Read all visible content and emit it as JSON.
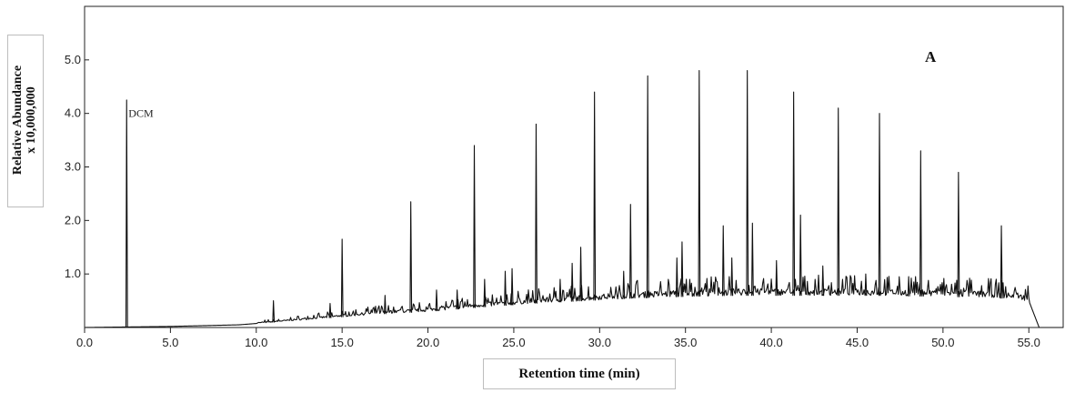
{
  "chart_data": {
    "type": "line",
    "title": "",
    "panel_label": "A",
    "xlabel": "Retention time  (min)",
    "ylabel_line1": "Relative Abundance",
    "ylabel_line2": "x 10,000,000",
    "xlim": [
      0.0,
      57.0
    ],
    "ylim": [
      0.0,
      6.0
    ],
    "x_ticks": [
      0.0,
      5.0,
      10.0,
      15.0,
      20.0,
      25.0,
      30.0,
      35.0,
      40.0,
      45.0,
      50.0,
      55.0
    ],
    "x_tick_labels": [
      "0.0",
      "5.0",
      "10.0",
      "15.0",
      "20.0",
      "25.0",
      "30.0",
      "35.0",
      "40.0",
      "45.0",
      "50.0",
      "55.0"
    ],
    "y_ticks": [
      1.0,
      2.0,
      3.0,
      4.0,
      5.0
    ],
    "y_tick_labels": [
      "1.0",
      "2.0",
      "3.0",
      "4.0",
      "5.0"
    ],
    "grid": false,
    "annotations": [
      {
        "text": "DCM",
        "x": 2.4,
        "y": 4.0
      }
    ],
    "baseline": [
      {
        "x": 0.0,
        "y": 0.0
      },
      {
        "x": 5.0,
        "y": 0.02
      },
      {
        "x": 9.0,
        "y": 0.05
      },
      {
        "x": 11.0,
        "y": 0.1
      },
      {
        "x": 13.0,
        "y": 0.15
      },
      {
        "x": 15.0,
        "y": 0.2
      },
      {
        "x": 17.0,
        "y": 0.25
      },
      {
        "x": 20.0,
        "y": 0.3
      },
      {
        "x": 23.0,
        "y": 0.38
      },
      {
        "x": 26.0,
        "y": 0.45
      },
      {
        "x": 29.0,
        "y": 0.5
      },
      {
        "x": 32.0,
        "y": 0.55
      },
      {
        "x": 35.0,
        "y": 0.58
      },
      {
        "x": 38.0,
        "y": 0.6
      },
      {
        "x": 42.0,
        "y": 0.6
      },
      {
        "x": 46.0,
        "y": 0.6
      },
      {
        "x": 50.0,
        "y": 0.58
      },
      {
        "x": 53.0,
        "y": 0.56
      },
      {
        "x": 55.0,
        "y": 0.5
      },
      {
        "x": 55.6,
        "y": 0.0
      }
    ],
    "peaks": [
      {
        "x": 2.45,
        "y": 4.25
      },
      {
        "x": 11.0,
        "y": 0.5
      },
      {
        "x": 14.3,
        "y": 0.45
      },
      {
        "x": 15.0,
        "y": 1.65
      },
      {
        "x": 17.5,
        "y": 0.6
      },
      {
        "x": 19.0,
        "y": 2.35
      },
      {
        "x": 20.5,
        "y": 0.7
      },
      {
        "x": 21.7,
        "y": 0.7
      },
      {
        "x": 22.7,
        "y": 3.4
      },
      {
        "x": 23.3,
        "y": 0.9
      },
      {
        "x": 24.5,
        "y": 1.05
      },
      {
        "x": 24.9,
        "y": 1.1
      },
      {
        "x": 26.3,
        "y": 3.8
      },
      {
        "x": 27.7,
        "y": 0.9
      },
      {
        "x": 28.4,
        "y": 1.2
      },
      {
        "x": 28.9,
        "y": 1.5
      },
      {
        "x": 29.7,
        "y": 4.4
      },
      {
        "x": 31.4,
        "y": 1.05
      },
      {
        "x": 31.8,
        "y": 2.3
      },
      {
        "x": 32.8,
        "y": 4.7
      },
      {
        "x": 34.5,
        "y": 1.3
      },
      {
        "x": 34.8,
        "y": 1.6
      },
      {
        "x": 35.8,
        "y": 4.8
      },
      {
        "x": 37.2,
        "y": 1.9
      },
      {
        "x": 37.7,
        "y": 1.3
      },
      {
        "x": 38.6,
        "y": 4.8
      },
      {
        "x": 38.9,
        "y": 1.95
      },
      {
        "x": 40.3,
        "y": 1.25
      },
      {
        "x": 41.3,
        "y": 4.4
      },
      {
        "x": 41.7,
        "y": 2.1
      },
      {
        "x": 43.0,
        "y": 1.15
      },
      {
        "x": 43.9,
        "y": 4.1
      },
      {
        "x": 45.5,
        "y": 1.0
      },
      {
        "x": 46.3,
        "y": 4.0
      },
      {
        "x": 48.0,
        "y": 0.95
      },
      {
        "x": 48.7,
        "y": 3.3
      },
      {
        "x": 50.9,
        "y": 2.9
      },
      {
        "x": 53.4,
        "y": 1.9
      }
    ]
  }
}
